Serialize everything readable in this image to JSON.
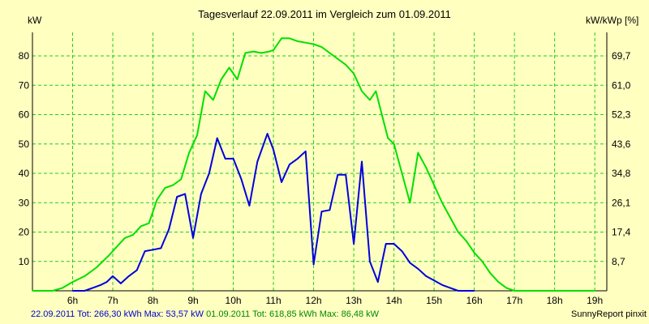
{
  "chart_data": {
    "type": "line",
    "title": "Tagesverlauf 22.09.2011 im Vergleich zum 01.09.2011",
    "ylabel_left": "kW",
    "ylabel_right": "kW/kWp [%]",
    "xlim": [
      5,
      19.3
    ],
    "ylim": [
      0,
      88
    ],
    "x_ticks": [
      6,
      7,
      8,
      9,
      10,
      11,
      12,
      13,
      14,
      15,
      16,
      17,
      18,
      19
    ],
    "x_tick_labels": [
      "6h",
      "7h",
      "8h",
      "9h",
      "10h",
      "11h",
      "12h",
      "13h",
      "14h",
      "15h",
      "16h",
      "17h",
      "18h",
      "19h"
    ],
    "y_ticks": [
      10,
      20,
      30,
      40,
      50,
      60,
      70,
      80
    ],
    "y_tick_labels": [
      "10",
      "20",
      "30",
      "40",
      "50",
      "60",
      "70",
      "80"
    ],
    "y2_ticks": [
      10,
      20,
      30,
      40,
      50,
      60,
      70,
      80
    ],
    "y2_tick_labels": [
      "8,7",
      "17,4",
      "26,1",
      "34,8",
      "43,6",
      "52,3",
      "61,0",
      "69,7"
    ],
    "grid": true,
    "series": [
      {
        "name": "01.09.2011",
        "color": "#00e000",
        "points": [
          [
            5.0,
            0
          ],
          [
            5.5,
            0
          ],
          [
            5.75,
            1
          ],
          [
            6.0,
            3
          ],
          [
            6.3,
            5
          ],
          [
            6.6,
            8
          ],
          [
            6.9,
            12
          ],
          [
            7.1,
            15
          ],
          [
            7.3,
            18
          ],
          [
            7.5,
            19
          ],
          [
            7.7,
            22
          ],
          [
            7.9,
            23
          ],
          [
            8.1,
            31
          ],
          [
            8.3,
            35
          ],
          [
            8.5,
            36
          ],
          [
            8.7,
            38
          ],
          [
            8.9,
            47
          ],
          [
            9.1,
            53
          ],
          [
            9.3,
            68
          ],
          [
            9.5,
            65
          ],
          [
            9.7,
            72
          ],
          [
            9.9,
            76
          ],
          [
            10.1,
            72
          ],
          [
            10.3,
            81
          ],
          [
            10.5,
            81.5
          ],
          [
            10.7,
            81
          ],
          [
            10.9,
            81.5
          ],
          [
            11.0,
            82
          ],
          [
            11.2,
            86
          ],
          [
            11.4,
            86
          ],
          [
            11.6,
            85
          ],
          [
            11.8,
            84.5
          ],
          [
            12.0,
            84
          ],
          [
            12.2,
            83
          ],
          [
            12.5,
            80
          ],
          [
            12.8,
            77
          ],
          [
            13.0,
            74
          ],
          [
            13.2,
            68
          ],
          [
            13.4,
            65
          ],
          [
            13.55,
            68
          ],
          [
            13.7,
            60
          ],
          [
            13.85,
            52
          ],
          [
            14.0,
            50
          ],
          [
            14.2,
            40
          ],
          [
            14.4,
            30
          ],
          [
            14.6,
            47
          ],
          [
            14.8,
            42
          ],
          [
            15.0,
            36
          ],
          [
            15.2,
            30
          ],
          [
            15.4,
            25
          ],
          [
            15.6,
            20
          ],
          [
            15.8,
            17
          ],
          [
            16.0,
            13
          ],
          [
            16.2,
            10
          ],
          [
            16.4,
            6
          ],
          [
            16.6,
            3
          ],
          [
            16.8,
            1
          ],
          [
            17.0,
            0
          ],
          [
            17.3,
            0
          ],
          [
            18.0,
            0
          ],
          [
            19.0,
            0
          ]
        ]
      },
      {
        "name": "22.09.2011",
        "color": "#0000dd",
        "points": [
          [
            6.0,
            0
          ],
          [
            6.3,
            0
          ],
          [
            6.5,
            1
          ],
          [
            6.7,
            2
          ],
          [
            6.85,
            3
          ],
          [
            7.0,
            5
          ],
          [
            7.2,
            2.5
          ],
          [
            7.4,
            5
          ],
          [
            7.6,
            7
          ],
          [
            7.8,
            13.5
          ],
          [
            8.0,
            14
          ],
          [
            8.2,
            14.5
          ],
          [
            8.4,
            21
          ],
          [
            8.6,
            32
          ],
          [
            8.8,
            33
          ],
          [
            9.0,
            18
          ],
          [
            9.2,
            33
          ],
          [
            9.4,
            40
          ],
          [
            9.6,
            52
          ],
          [
            9.8,
            45
          ],
          [
            10.0,
            45
          ],
          [
            10.2,
            38
          ],
          [
            10.4,
            29
          ],
          [
            10.6,
            44
          ],
          [
            10.85,
            53.5
          ],
          [
            11.0,
            48
          ],
          [
            11.2,
            37
          ],
          [
            11.4,
            43
          ],
          [
            11.6,
            45
          ],
          [
            11.8,
            47.5
          ],
          [
            12.0,
            9
          ],
          [
            12.2,
            27
          ],
          [
            12.4,
            27.5
          ],
          [
            12.6,
            39.5
          ],
          [
            12.8,
            39.5
          ],
          [
            13.0,
            16
          ],
          [
            13.2,
            44
          ],
          [
            13.4,
            10
          ],
          [
            13.6,
            3
          ],
          [
            13.8,
            16
          ],
          [
            14.0,
            16
          ],
          [
            14.2,
            13.5
          ],
          [
            14.4,
            9.5
          ],
          [
            14.6,
            7.5
          ],
          [
            14.8,
            5
          ],
          [
            15.0,
            3.5
          ],
          [
            15.2,
            2
          ],
          [
            15.4,
            1
          ],
          [
            15.6,
            0
          ],
          [
            16.0,
            0
          ]
        ]
      }
    ]
  },
  "footer": {
    "series2_text": "22.09.2011 Tot: 266,30 kWh Max: 53,57 kW",
    "series1_text": "01.09.2011 Tot: 618,85 kWh Max: 86,48 kW",
    "credit": "SunnyReport pinxit"
  },
  "colors": {
    "background": "#ffffc0",
    "grid": "#22cc22",
    "axis": "#000000"
  }
}
